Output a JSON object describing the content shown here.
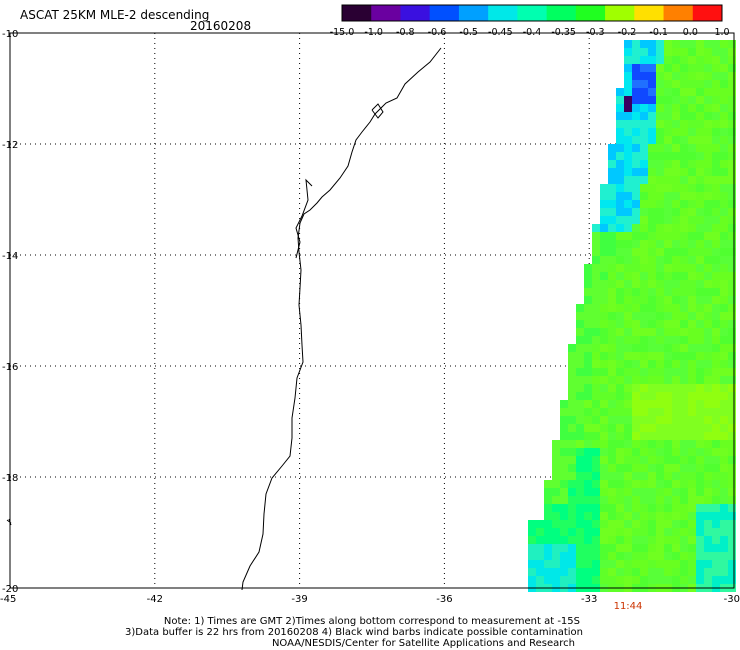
{
  "header": {
    "title": "ASCAT 25KM MLE-2 descending",
    "date": "20160208"
  },
  "colorbar": {
    "labels": [
      "-15.0",
      "-1.0",
      "-0.8",
      "-0.6",
      "-0.5",
      "-0.45",
      "-0.4",
      "-0.35",
      "-0.3",
      "-0.2",
      "-0.1",
      "0.0",
      "1.0"
    ],
    "colors": [
      "#2a0033",
      "#6a00a0",
      "#3a10e0",
      "#0050ff",
      "#00a0ff",
      "#00e8e8",
      "#00ffb0",
      "#00ff60",
      "#20ff20",
      "#a0ff00",
      "#ffe000",
      "#ff8000",
      "#ff1010"
    ]
  },
  "axes": {
    "x_ticks": [
      "-45",
      "-42",
      "-39",
      "-36",
      "-33",
      "-30"
    ],
    "y_ticks": [
      "-10",
      "-12",
      "-14",
      "-16",
      "-18",
      "-20"
    ]
  },
  "time_label": "11:44",
  "notes": [
    "Note: 1) Times are GMT 2)Times along bottom correspond to measurement at -15S",
    "3)Data buffer is 22 hrs from 20160208 4) Black wind barbs indicate possible contamination",
    "NOAA/NESDIS/Center for Satellite Applications and Research"
  ],
  "colors": {
    "map_text": "#000000",
    "time_label": "#cc3300"
  }
}
